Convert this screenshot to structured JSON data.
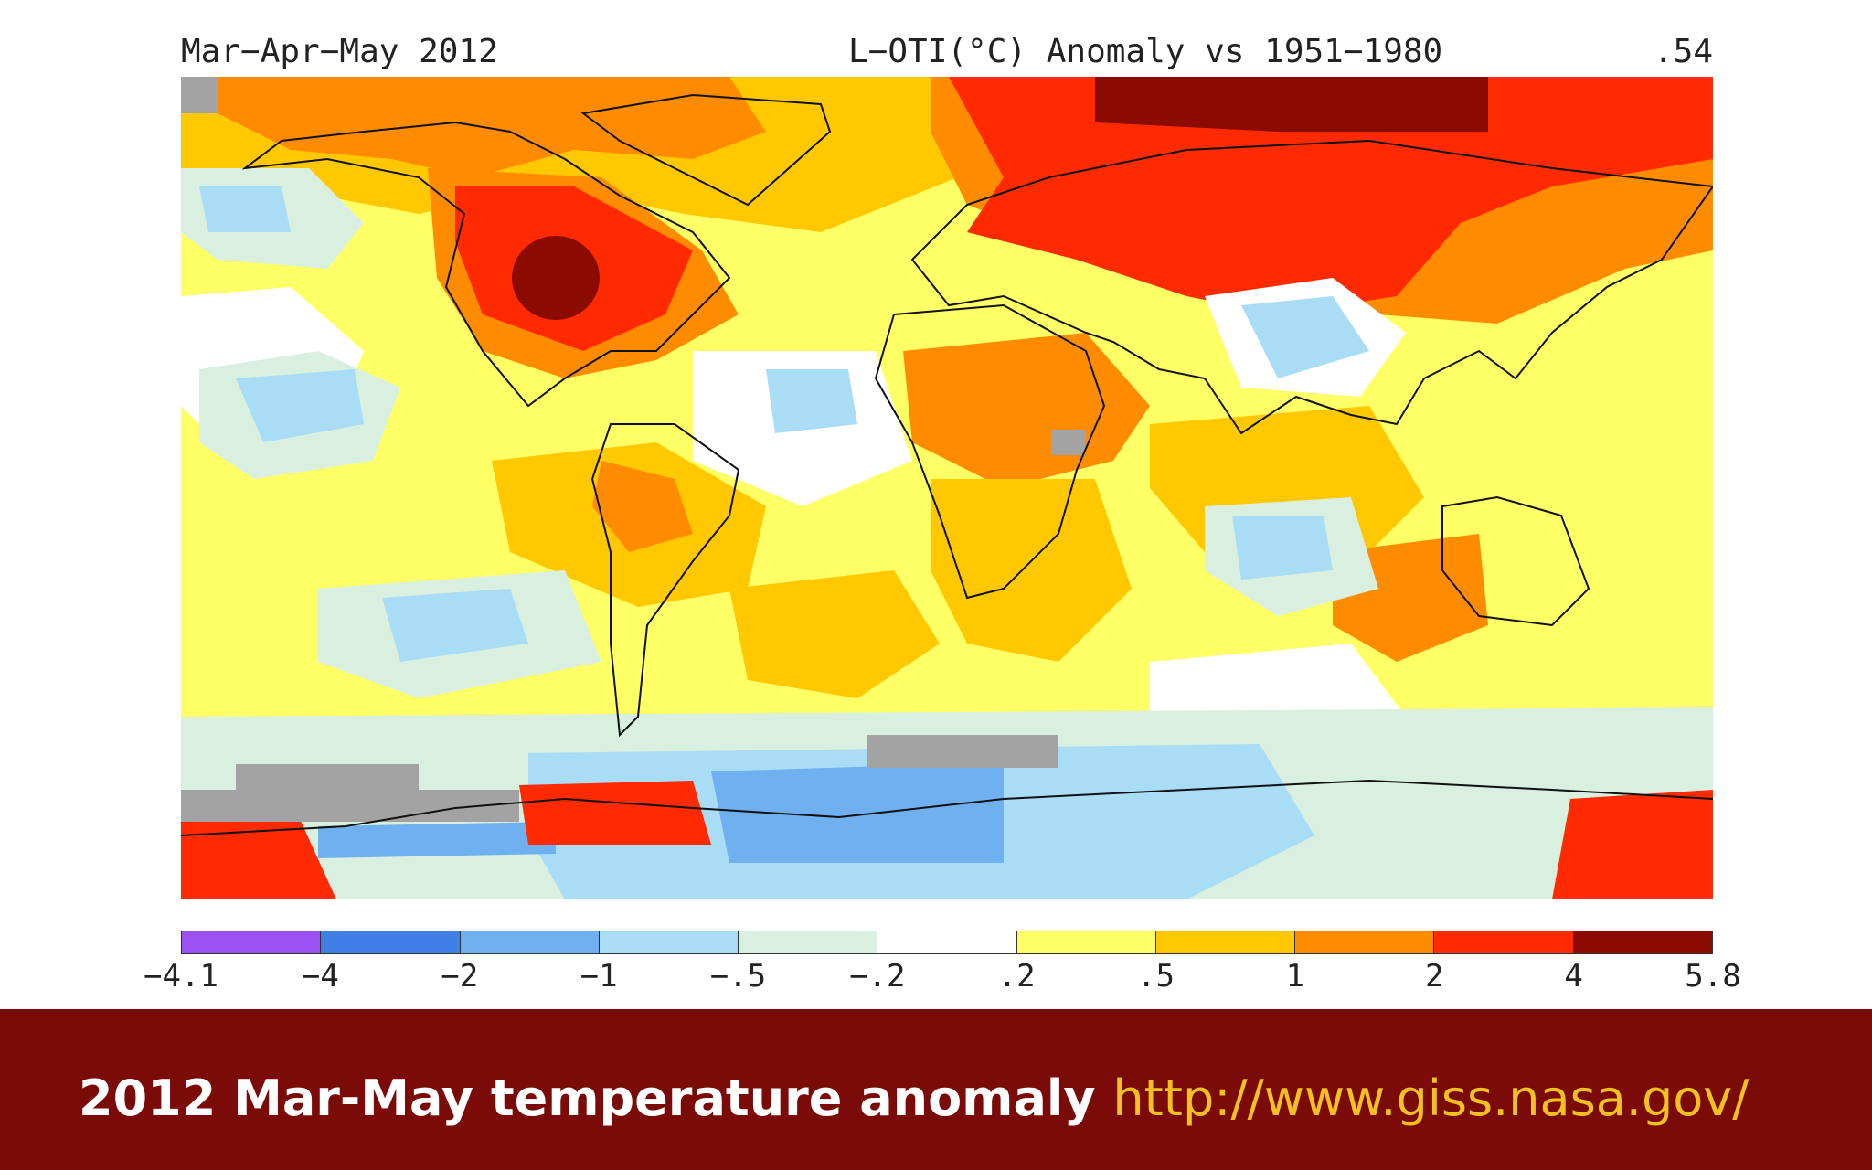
{
  "title": {
    "period": "Mar−Apr−May 2012",
    "description": "L−OTI(°C) Anomaly vs 1951−1980",
    "mean_anomaly": ".54"
  },
  "colorbar": {
    "tick_labels": [
      "−4.1",
      "−4",
      "−2",
      "−1",
      "−.5",
      "−.2",
      ".2",
      ".5",
      "1",
      "2",
      "4",
      "5.8"
    ],
    "colors": [
      "#9b52f0",
      "#3f7fe6",
      "#6fb0f0",
      "#a9dcf5",
      "#d9efe0",
      "#ffffff",
      "#ffff66",
      "#ffc800",
      "#ff8c00",
      "#ff2a00",
      "#8b0b00"
    ]
  },
  "map_colors": {
    "no_data": "#a3a3a3",
    "coastline": "#111111"
  },
  "caption": {
    "text": "2012 Mar-May temperature anomaly",
    "url": "http://www.giss.nasa.gov/"
  }
}
